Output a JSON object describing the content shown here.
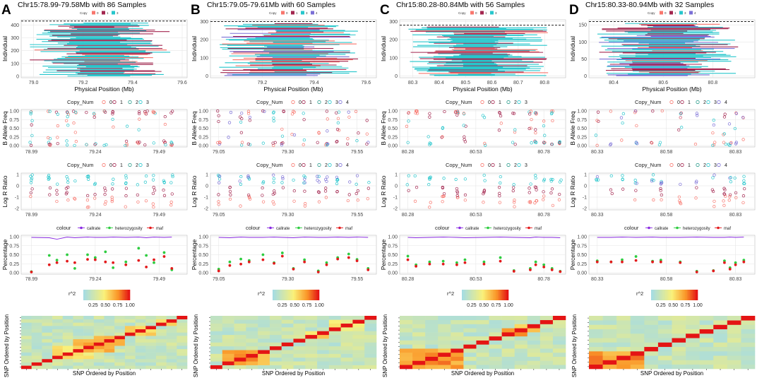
{
  "figure_title": "Genomic copy number and SNP analysis panels for four Chr15 regions",
  "colors": {
    "copy0": "#f8766d",
    "copy1": "#a3264f",
    "copy2": "#2f9e8e",
    "copy3": "#26c6cc",
    "copy4": "#7b6fd6",
    "callrate": "#8a2be2",
    "heterozygosity": "#2ecc40",
    "maf": "#e31a1c",
    "grid": "#e6e6e6",
    "panel_border": "#bdbdbd"
  },
  "labels": {
    "copy_legend_title": "Copy",
    "copynum_legend_title": "Copy_Num",
    "colour_legend_title": "colour",
    "colour_items": [
      "callrate",
      "heterozygosity",
      "maf"
    ],
    "r2_legend_title": "r^2",
    "r2_ticks": [
      "0.25",
      "0.50",
      "0.75",
      "1.00"
    ],
    "y_individual": "Individual",
    "x_physical": "Physical Position (Mb)",
    "y_baf": "B Allele Freq",
    "y_lrr": "Log R Ratio",
    "y_pct": "Percentage",
    "y_snp": "SNP Ordered by Position",
    "x_snp": "SNP Ordered by Position"
  },
  "chart_data": [
    {
      "letter": "A",
      "title": "Chr15:78.99-79.58Mb with 86 Samples",
      "copies": [
        "0",
        "1",
        "3"
      ],
      "segment_chart": {
        "type": "segment",
        "xlim": [
          78.95,
          79.62
        ],
        "x_ticks": [
          "79.0",
          "79.2",
          "79.4",
          "79.6"
        ],
        "x_tick_values": [
          79.0,
          79.2,
          79.4,
          79.6
        ],
        "ylim": [
          -10,
          440
        ],
        "y_ticks": [
          "0",
          "100",
          "200",
          "300",
          "400"
        ],
        "y_tick_values": [
          0,
          100,
          200,
          300,
          400
        ],
        "n_individuals": 430
      },
      "snp_positions": [
        78.99,
        79.06,
        79.09,
        79.13,
        79.16,
        79.21,
        79.24,
        79.28,
        79.31,
        79.36,
        79.41,
        79.44,
        79.47,
        79.51,
        79.54
      ],
      "snp_x_ticks": [
        "78.99",
        "79.24",
        "79.49"
      ],
      "snp_x_tick_values": [
        78.99,
        79.24,
        79.49
      ],
      "snp_xlim": [
        78.95,
        79.6
      ],
      "baf_y_ticks": [
        "0.00",
        "0.25",
        "0.50",
        "0.75",
        "1.00"
      ],
      "lrr_ylim": [
        -2,
        1
      ],
      "lrr_y_ticks": [
        "-2",
        "-1",
        "0",
        "1"
      ],
      "pct_y_ticks": [
        "0.00",
        "0.25",
        "0.50",
        "0.75",
        "1.00"
      ],
      "callrate": [
        0.98,
        0.97,
        0.93,
        0.99,
        0.97,
        0.99,
        0.98,
        0.98,
        0.99,
        0.98,
        0.99,
        0.97,
        0.99,
        0.98,
        0.99
      ],
      "heterozygosity": [
        0.03,
        0.48,
        0.35,
        0.5,
        0.12,
        0.5,
        0.42,
        0.58,
        0.14,
        0.3,
        0.68,
        0.48,
        0.28,
        0.56,
        0.08
      ],
      "maf": [
        0.02,
        0.22,
        0.28,
        0.32,
        0.28,
        0.37,
        0.36,
        0.3,
        0.28,
        0.22,
        0.34,
        0.16,
        0.36,
        0.45,
        0.12
      ],
      "ld_n": 16,
      "ld_hotspots": [
        [
          5,
          8,
          0.75
        ],
        [
          7,
          9,
          0.7
        ],
        [
          3,
          6,
          0.55
        ],
        [
          10,
          12,
          0.6
        ],
        [
          13,
          14,
          0.6
        ]
      ]
    },
    {
      "letter": "B",
      "title": "Chr15:79.05-79.61Mb with 60 Samples",
      "copies": [
        "0",
        "1",
        "3",
        "4"
      ],
      "segment_chart": {
        "type": "segment",
        "xlim": [
          79.0,
          79.64
        ],
        "x_ticks": [
          "79.2",
          "79.4",
          "79.6"
        ],
        "x_tick_values": [
          79.2,
          79.4,
          79.6
        ],
        "ylim": [
          -10,
          310
        ],
        "y_ticks": [
          "0",
          "100",
          "200",
          "300"
        ],
        "y_tick_values": [
          0,
          100,
          200,
          300
        ],
        "n_individuals": 300
      },
      "snp_positions": [
        79.05,
        79.09,
        79.13,
        79.16,
        79.21,
        79.25,
        79.28,
        79.32,
        79.36,
        79.41,
        79.44,
        79.48,
        79.52,
        79.55,
        79.59
      ],
      "snp_x_ticks": [
        "79.05",
        "79.30",
        "79.55"
      ],
      "snp_x_tick_values": [
        79.05,
        79.3,
        79.55
      ],
      "snp_xlim": [
        79.02,
        79.62
      ],
      "baf_y_ticks": [
        "0.00",
        "0.25",
        "0.50",
        "0.75",
        "1.00"
      ],
      "lrr_ylim": [
        -2,
        1
      ],
      "lrr_y_ticks": [
        "-2",
        "-1",
        "0",
        "1"
      ],
      "pct_y_ticks": [
        "0.00",
        "0.25",
        "0.50",
        "0.75",
        "1.00"
      ],
      "callrate": [
        0.98,
        0.97,
        0.99,
        0.98,
        0.98,
        0.99,
        0.98,
        0.97,
        0.99,
        0.98,
        0.98,
        0.99,
        0.98,
        0.99,
        0.98
      ],
      "heterozygosity": [
        0.1,
        0.3,
        0.38,
        0.34,
        0.5,
        0.28,
        0.55,
        0.12,
        0.36,
        0.05,
        0.28,
        0.42,
        0.52,
        0.37,
        0.12
      ],
      "maf": [
        0.05,
        0.2,
        0.24,
        0.3,
        0.36,
        0.26,
        0.46,
        0.1,
        0.3,
        0.02,
        0.22,
        0.38,
        0.42,
        0.33,
        0.08
      ],
      "ld_n": 14,
      "ld_hotspots": [
        [
          1,
          4,
          0.8
        ],
        [
          2,
          3,
          0.9
        ],
        [
          8,
          9,
          0.6
        ],
        [
          10,
          12,
          0.5
        ]
      ]
    },
    {
      "letter": "C",
      "title": "Chr15:80.28-80.84Mb with 56 Samples",
      "copies": [
        "0",
        "1",
        "3"
      ],
      "segment_chart": {
        "type": "segment",
        "xlim": [
          80.25,
          80.88
        ],
        "x_ticks": [
          "80.3",
          "80.4",
          "80.5",
          "80.6",
          "80.7",
          "80.8"
        ],
        "x_tick_values": [
          80.3,
          80.4,
          80.5,
          80.6,
          80.7,
          80.8
        ],
        "ylim": [
          -10,
          310
        ],
        "y_ticks": [
          "0",
          "100",
          "200",
          "300"
        ],
        "y_tick_values": [
          0,
          100,
          200,
          300
        ],
        "n_individuals": 280
      },
      "snp_positions": [
        80.28,
        80.31,
        80.36,
        80.41,
        80.46,
        80.49,
        80.56,
        80.62,
        80.67,
        80.73,
        80.75,
        80.78,
        80.81,
        80.84
      ],
      "snp_x_ticks": [
        "80.28",
        "80.53",
        "80.78"
      ],
      "snp_x_tick_values": [
        80.28,
        80.53,
        80.78
      ],
      "snp_xlim": [
        80.25,
        80.86
      ],
      "baf_y_ticks": [
        "0.00",
        "0.25",
        "0.50",
        "0.75",
        "1.00"
      ],
      "lrr_ylim": [
        -2,
        1
      ],
      "lrr_y_ticks": [
        "-2",
        "-1",
        "0",
        "1"
      ],
      "pct_y_ticks": [
        "0.00",
        "0.25",
        "0.50",
        "0.75",
        "1.00"
      ],
      "callrate": [
        0.98,
        0.97,
        0.98,
        0.99,
        0.98,
        0.97,
        0.98,
        0.99,
        0.98,
        0.97,
        0.99,
        0.98,
        0.98,
        0.97
      ],
      "heterozygosity": [
        0.46,
        0.22,
        0.3,
        0.32,
        0.28,
        0.36,
        0.3,
        0.42,
        0.06,
        0.12,
        0.3,
        0.22,
        0.12,
        0.04
      ],
      "maf": [
        0.36,
        0.18,
        0.24,
        0.24,
        0.22,
        0.28,
        0.24,
        0.32,
        0.04,
        0.08,
        0.22,
        0.16,
        0.08,
        0.03
      ],
      "ld_n": 13,
      "ld_hotspots": [
        [
          0,
          4,
          0.8
        ],
        [
          1,
          3,
          0.85
        ],
        [
          8,
          9,
          0.9
        ],
        [
          9,
          10,
          0.7
        ]
      ]
    },
    {
      "letter": "D",
      "title": "Chr15:80.33-80.94Mb with 32 Samples",
      "copies": [
        "0",
        "1",
        "3",
        "4"
      ],
      "segment_chart": {
        "type": "segment",
        "xlim": [
          80.3,
          80.97
        ],
        "x_ticks": [
          "80.4",
          "80.6",
          "80.8"
        ],
        "x_tick_values": [
          80.4,
          80.6,
          80.8
        ],
        "ylim": [
          -5,
          165
        ],
        "y_ticks": [
          "0",
          "50",
          "100",
          "150"
        ],
        "y_tick_values": [
          0,
          50,
          100,
          150
        ],
        "n_individuals": 160
      },
      "snp_positions": [
        80.33,
        80.38,
        80.42,
        80.47,
        80.53,
        80.56,
        80.63,
        80.69,
        80.75,
        80.79,
        80.81,
        80.83,
        80.86
      ],
      "snp_x_ticks": [
        "80.33",
        "80.58",
        "80.83"
      ],
      "snp_x_tick_values": [
        80.33,
        80.58,
        80.83
      ],
      "snp_xlim": [
        80.3,
        80.9
      ],
      "baf_y_ticks": [
        "0.00",
        "0.25",
        "0.50",
        "0.75",
        "1.00"
      ],
      "lrr_ylim": [
        -2,
        1
      ],
      "lrr_y_ticks": [
        "-2",
        "-1",
        "0",
        "1"
      ],
      "pct_y_ticks": [
        "0.00",
        "0.25",
        "0.50",
        "0.75",
        "1.00"
      ],
      "callrate": [
        0.98,
        0.98,
        0.99,
        0.98,
        0.99,
        0.98,
        0.98,
        0.99,
        0.98,
        0.98,
        0.99,
        0.98,
        0.99
      ],
      "heterozygosity": [
        0.33,
        0.3,
        0.36,
        0.45,
        0.32,
        0.35,
        0.3,
        0.04,
        0.06,
        0.33,
        0.14,
        0.28,
        0.35
      ],
      "maf": [
        0.3,
        0.3,
        0.3,
        0.34,
        0.3,
        0.3,
        0.28,
        0.02,
        0.05,
        0.28,
        0.1,
        0.22,
        0.3
      ],
      "ld_n": 12,
      "ld_hotspots": [
        [
          0,
          3,
          0.85
        ],
        [
          1,
          2,
          0.9
        ]
      ]
    }
  ]
}
